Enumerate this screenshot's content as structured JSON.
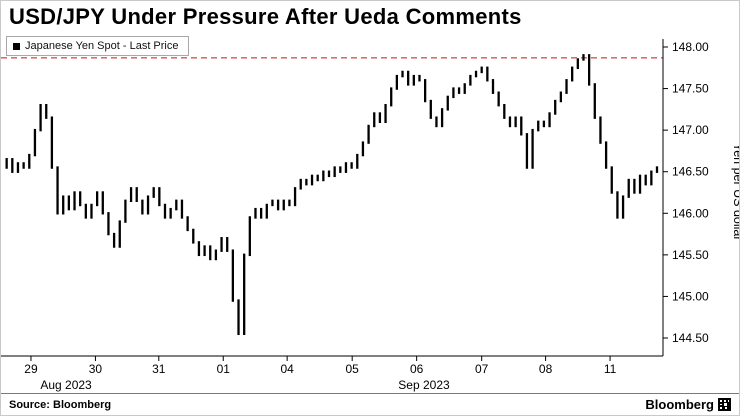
{
  "header": {
    "title": "USD/JPY Under Pressure After Ueda Comments"
  },
  "legend": {
    "label": "Japanese Yen Spot - Last Price"
  },
  "footer": {
    "source": "Source: Bloomberg",
    "brand": "Bloomberg"
  },
  "chart_data": {
    "type": "line",
    "render_style": "intraday-price-bars",
    "title": "USD/JPY Under Pressure After Ueda Comments",
    "ylabel": "Yen per US dollar",
    "ylim": [
      144.35,
      148.15
    ],
    "y_ticks": [
      "144.50",
      "145.00",
      "145.50",
      "146.00",
      "146.50",
      "147.00",
      "147.50",
      "148.00"
    ],
    "reference_line": {
      "value": 147.87,
      "color": "#de5250",
      "style": "dashed"
    },
    "x_ticks": [
      {
        "label": "29",
        "i": 5.3
      },
      {
        "label": "30",
        "i": 16.7
      },
      {
        "label": "31",
        "i": 27.9
      },
      {
        "label": "01",
        "i": 39.3
      },
      {
        "label": "04",
        "i": 50.6
      },
      {
        "label": "05",
        "i": 62.1
      },
      {
        "label": "06",
        "i": 73.5
      },
      {
        "label": "07",
        "i": 85.0
      },
      {
        "label": "08",
        "i": 96.3
      },
      {
        "label": "11",
        "i": 107.7
      }
    ],
    "month_labels": [
      {
        "label": "Aug 2023",
        "i": 11.5
      },
      {
        "label": "Sep 2023",
        "i": 74.8
      }
    ],
    "series": [
      {
        "name": "Japanese Yen Spot - Last Price",
        "values": [
          146.55,
          146.65,
          146.5,
          146.6,
          146.55,
          146.7,
          147.0,
          147.3,
          147.15,
          146.55,
          146.0,
          146.2,
          146.05,
          146.25,
          146.1,
          145.95,
          146.1,
          146.25,
          146.0,
          145.75,
          145.6,
          145.9,
          146.15,
          146.3,
          146.15,
          146.0,
          146.2,
          146.3,
          146.1,
          145.95,
          146.05,
          146.15,
          145.95,
          145.8,
          145.65,
          145.5,
          145.6,
          145.45,
          145.55,
          145.7,
          145.55,
          144.95,
          144.55,
          145.5,
          145.95,
          146.05,
          145.95,
          146.1,
          146.15,
          146.05,
          146.15,
          146.1,
          146.3,
          146.4,
          146.35,
          146.45,
          146.4,
          146.5,
          146.45,
          146.55,
          146.5,
          146.6,
          146.55,
          146.7,
          146.85,
          147.05,
          147.2,
          147.1,
          147.3,
          147.5,
          147.65,
          147.7,
          147.55,
          147.65,
          147.6,
          147.35,
          147.15,
          147.05,
          147.25,
          147.4,
          147.5,
          147.45,
          147.55,
          147.65,
          147.7,
          147.75,
          147.6,
          147.45,
          147.3,
          147.15,
          147.05,
          147.15,
          146.95,
          146.55,
          147.0,
          147.1,
          147.05,
          147.2,
          147.35,
          147.45,
          147.6,
          147.75,
          147.85,
          147.9,
          147.55,
          147.15,
          146.85,
          146.55,
          146.25,
          145.95,
          146.2,
          146.4,
          146.25,
          146.45,
          146.35,
          146.5,
          146.55
        ]
      }
    ],
    "colors": {
      "bar": "#000000",
      "axis": "#000000",
      "text": "#000000"
    }
  }
}
